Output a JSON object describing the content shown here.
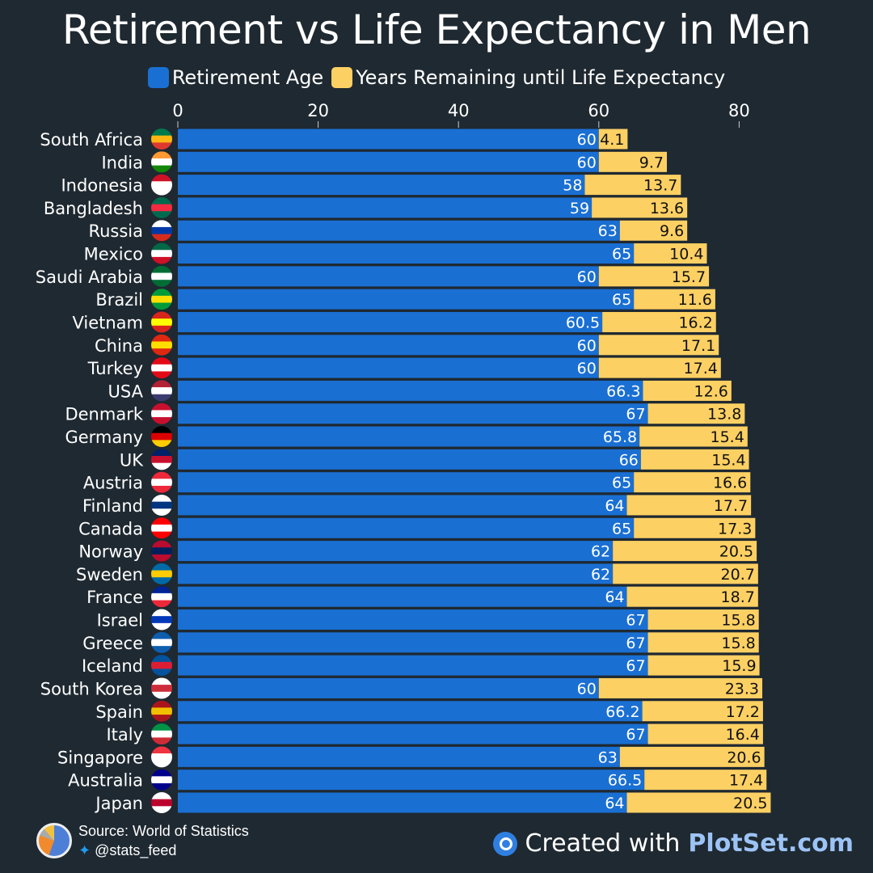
{
  "chart_data": {
    "type": "bar",
    "stacked": true,
    "orientation": "horizontal",
    "title": "Retirement vs Life Expectancy in Men",
    "xlim": [
      0,
      85
    ],
    "xticks": [
      0,
      20,
      40,
      60,
      80
    ],
    "grid": false,
    "legend_placement": "top",
    "categories": [
      "South Africa",
      "India",
      "Indonesia",
      "Bangladesh",
      "Russia",
      "Mexico",
      "Saudi Arabia",
      "Brazil",
      "Vietnam",
      "China",
      "Turkey",
      "USA",
      "Denmark",
      "Germany",
      "UK",
      "Austria",
      "Finland",
      "Canada",
      "Norway",
      "Sweden",
      "France",
      "Israel",
      "Greece",
      "Iceland",
      "South Korea",
      "Spain",
      "Italy",
      "Singapore",
      "Australia",
      "Japan"
    ],
    "series": [
      {
        "name": "Retirement Age",
        "color": "#1a6fd3",
        "values": [
          60,
          60,
          58,
          59,
          63,
          65,
          60,
          65,
          60.5,
          60,
          60,
          66.3,
          67,
          65.8,
          66,
          65,
          64,
          65,
          62,
          62,
          64,
          67,
          67,
          67,
          60,
          66.2,
          67,
          63,
          66.5,
          64
        ]
      },
      {
        "name": "Years Remaining until Life Expectancy",
        "color": "#fdd063",
        "values": [
          4.1,
          9.7,
          13.7,
          13.6,
          9.6,
          10.4,
          15.7,
          11.6,
          16.2,
          17.1,
          17.4,
          12.6,
          13.8,
          15.4,
          15.4,
          16.6,
          17.7,
          17.3,
          20.5,
          20.7,
          18.7,
          15.8,
          15.8,
          15.9,
          23.3,
          17.2,
          16.4,
          20.6,
          17.4,
          20.5
        ]
      }
    ],
    "flag_colors": [
      [
        "#007a4d",
        "#ffb612",
        "#de3831"
      ],
      [
        "#ff9933",
        "#ffffff",
        "#138808"
      ],
      [
        "#ce1126",
        "#ffffff",
        "#ffffff"
      ],
      [
        "#006a4e",
        "#f42a41",
        "#006a4e"
      ],
      [
        "#ffffff",
        "#0039a6",
        "#d52b1e"
      ],
      [
        "#006847",
        "#ffffff",
        "#ce1126"
      ],
      [
        "#006c35",
        "#ffffff",
        "#006c35"
      ],
      [
        "#009b3a",
        "#fedf00",
        "#009b3a"
      ],
      [
        "#da251d",
        "#ffff00",
        "#da251d"
      ],
      [
        "#de2910",
        "#ffde00",
        "#de2910"
      ],
      [
        "#e30a17",
        "#ffffff",
        "#e30a17"
      ],
      [
        "#b22234",
        "#ffffff",
        "#3c3b6e"
      ],
      [
        "#c8102e",
        "#ffffff",
        "#c8102e"
      ],
      [
        "#000000",
        "#dd0000",
        "#ffce00"
      ],
      [
        "#012169",
        "#c8102e",
        "#ffffff"
      ],
      [
        "#ed2939",
        "#ffffff",
        "#ed2939"
      ],
      [
        "#ffffff",
        "#003580",
        "#ffffff"
      ],
      [
        "#ff0000",
        "#ffffff",
        "#ff0000"
      ],
      [
        "#ba0c2f",
        "#00205b",
        "#ba0c2f"
      ],
      [
        "#006aa7",
        "#fecc00",
        "#006aa7"
      ],
      [
        "#002395",
        "#ffffff",
        "#ed2939"
      ],
      [
        "#ffffff",
        "#0038b8",
        "#ffffff"
      ],
      [
        "#0d5eaf",
        "#ffffff",
        "#0d5eaf"
      ],
      [
        "#02529c",
        "#dc1e35",
        "#02529c"
      ],
      [
        "#ffffff",
        "#cd2e3a",
        "#ffffff"
      ],
      [
        "#aa151b",
        "#f1bf00",
        "#aa151b"
      ],
      [
        "#009246",
        "#ffffff",
        "#ce2b37"
      ],
      [
        "#ef3340",
        "#ffffff",
        "#ffffff"
      ],
      [
        "#00008b",
        "#ffffff",
        "#00008b"
      ],
      [
        "#ffffff",
        "#bc002d",
        "#ffffff"
      ]
    ]
  },
  "legend": {
    "retirement": "Retirement Age",
    "remaining": "Years Remaining until Life Expectancy"
  },
  "footer": {
    "source": "Source: World of Statistics",
    "handle": "@stats_feed",
    "created_with": "Created with",
    "brand": "PlotSet.com"
  }
}
